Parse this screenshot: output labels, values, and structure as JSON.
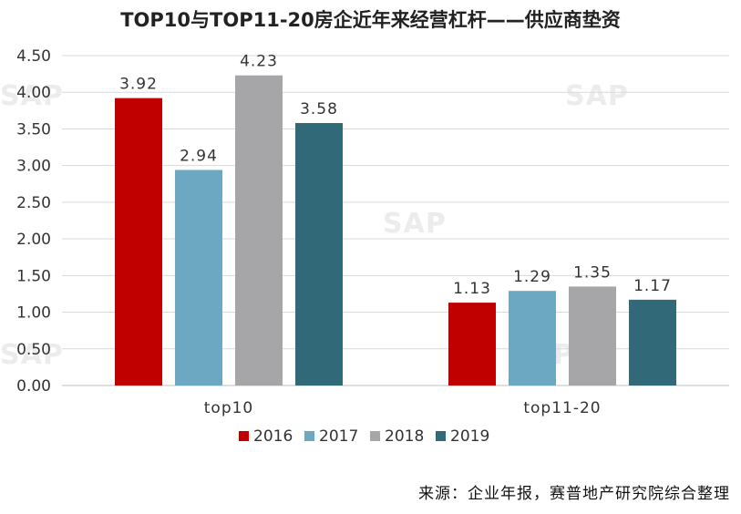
{
  "chart_data": {
    "type": "bar",
    "title": "TOP10与TOP11-20房企近年来经营杠杆——供应商垫资",
    "categories": [
      "top10",
      "top11-20"
    ],
    "series": [
      {
        "name": "2016",
        "color": "#C00000",
        "values": [
          3.92,
          1.13
        ]
      },
      {
        "name": "2017",
        "color": "#6CA8C2",
        "values": [
          2.94,
          1.29
        ]
      },
      {
        "name": "2018",
        "color": "#A6A6A8",
        "values": [
          4.23,
          1.35
        ]
      },
      {
        "name": "2019",
        "color": "#326978",
        "values": [
          3.58,
          1.17
        ]
      }
    ],
    "ylim": [
      0,
      4.5
    ],
    "yticks": [
      "0.00",
      "0.50",
      "1.00",
      "1.50",
      "2.00",
      "2.50",
      "3.00",
      "3.50",
      "4.00",
      "4.50"
    ],
    "grid": true,
    "legend_position": "bottom"
  },
  "watermark": "SAP",
  "source": "来源：企业年报，赛普地产研究院综合整理"
}
